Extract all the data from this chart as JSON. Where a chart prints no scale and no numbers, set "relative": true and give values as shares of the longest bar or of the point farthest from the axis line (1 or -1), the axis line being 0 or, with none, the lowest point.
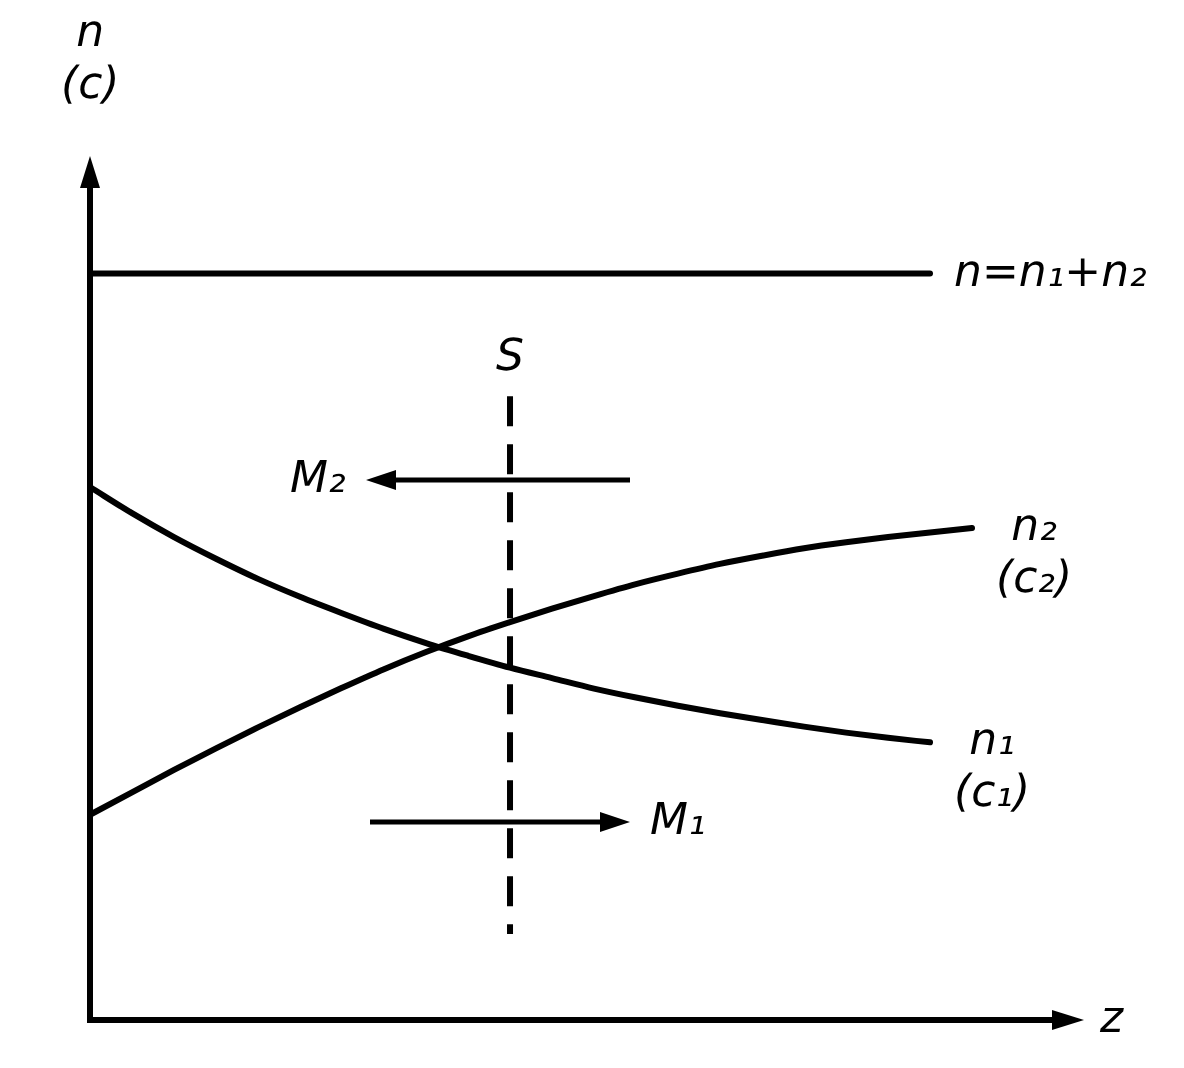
{
  "chart_data": {
    "type": "line",
    "ylabel": "n (c)",
    "xlabel": "z",
    "relative": true,
    "annotations": [
      "S",
      "M₂",
      "M₁"
    ],
    "categories": [
      null,
      null,
      null,
      null,
      null,
      null,
      null,
      null,
      null,
      null,
      null,
      null,
      null,
      null,
      null,
      null,
      null,
      null,
      null,
      null,
      null,
      null,
      null,
      null
    ],
    "series": [
      {
        "name": "n=n₁+n₂",
        "color": "#000000",
        "values": [
          1,
          1,
          1,
          1,
          1,
          1,
          1,
          1,
          1,
          1,
          1,
          1,
          1,
          1,
          1,
          1,
          1,
          1,
          1,
          1,
          1,
          null,
          null,
          null
        ]
      },
      {
        "name": "n₁ (c₁)",
        "color": "#000000",
        "values": [
          0.714,
          0.679,
          0.647,
          0.618,
          0.591,
          0.567,
          0.545,
          0.524,
          0.505,
          0.488,
          0.472,
          0.458,
          0.444,
          0.432,
          0.421,
          0.411,
          0.402,
          0.393,
          0.385,
          0.378,
          0.372,
          null,
          null,
          null
        ]
      },
      {
        "name": "n₂ (c₂)",
        "color": "#000000",
        "values": [
          0.275,
          0.305,
          0.335,
          0.364,
          0.392,
          0.419,
          0.445,
          0.47,
          0.493,
          0.514,
          0.533,
          0.551,
          0.568,
          0.584,
          0.598,
          0.611,
          0.622,
          0.632,
          0.64,
          0.647,
          0.653,
          0.659,
          null,
          null
        ]
      }
    ]
  }
}
